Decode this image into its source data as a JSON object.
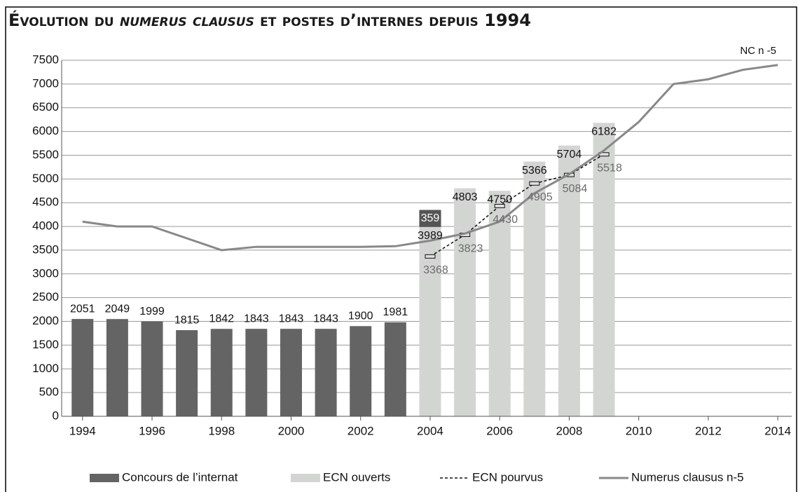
{
  "chart_data": {
    "type": "combo",
    "title": [
      "Évolution du ",
      "numerus clausus",
      " et postes d’internes depuis 1994"
    ],
    "annotation": "NC n -5",
    "x": [
      1994,
      1995,
      1996,
      1997,
      1998,
      1999,
      2000,
      2001,
      2002,
      2003,
      2004,
      2005,
      2006,
      2007,
      2008,
      2009,
      2010,
      2011,
      2012,
      2013,
      2014
    ],
    "xlim": [
      1993.4,
      2014.4
    ],
    "xticks": [
      1994,
      1996,
      1998,
      2000,
      2002,
      2004,
      2006,
      2008,
      2010,
      2012,
      2014
    ],
    "ylim": [
      0,
      7500
    ],
    "yticks": [
      0,
      500,
      1000,
      1500,
      2000,
      2500,
      3000,
      3500,
      4000,
      4500,
      5000,
      5500,
      6000,
      6500,
      7000,
      7500
    ],
    "grid": true,
    "legend": "bottom",
    "series": [
      {
        "name": "ECN ouverts",
        "type": "bar",
        "color": "#d3d5d3",
        "values": [
          null,
          null,
          null,
          null,
          null,
          null,
          null,
          null,
          null,
          null,
          3989,
          4803,
          4750,
          5366,
          5704,
          6182,
          null,
          null,
          null,
          null,
          null
        ]
      },
      {
        "name": "Concours de l’internat",
        "type": "bar",
        "stacked": true,
        "color": "#646464",
        "values": [
          2051,
          2049,
          1999,
          1815,
          1842,
          1843,
          1843,
          1843,
          1900,
          1981,
          359,
          null,
          null,
          null,
          null,
          null,
          null,
          null,
          null,
          null,
          null
        ]
      },
      {
        "name": "ECN pourvus",
        "type": "line",
        "dashed": true,
        "color": "#111111",
        "values": [
          null,
          null,
          null,
          null,
          null,
          null,
          null,
          null,
          null,
          null,
          3368,
          3823,
          4430,
          4905,
          5084,
          5518,
          null,
          null,
          null,
          null,
          null
        ]
      },
      {
        "name": "Numerus clausus n-5",
        "type": "line",
        "color": "#888888",
        "values": [
          4100,
          4000,
          4000,
          3750,
          3500,
          3570,
          3570,
          3570,
          3570,
          3583,
          3700,
          3850,
          4100,
          4700,
          5100,
          5600,
          6200,
          7000,
          7100,
          7300,
          7400
        ]
      }
    ],
    "legend_order": [
      1,
      0,
      2,
      3
    ]
  }
}
